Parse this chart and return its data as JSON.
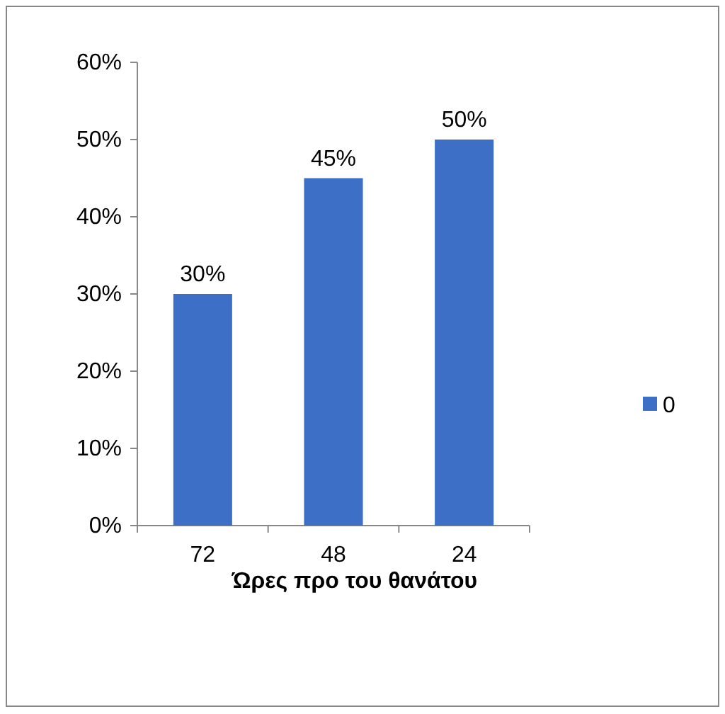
{
  "chart_data": {
    "type": "bar",
    "xlabel": "Ώρες προ του θανάτου",
    "categories": [
      "72",
      "48",
      "24"
    ],
    "series": [
      {
        "name": "0",
        "color": "#3d6fc6",
        "values": [
          30,
          45,
          50
        ],
        "value_labels": [
          "30%",
          "45%",
          "50%"
        ]
      }
    ],
    "ylim": [
      0,
      60
    ],
    "yticks": [
      {
        "value": 0,
        "label": "0%"
      },
      {
        "value": 10,
        "label": "10%"
      },
      {
        "value": 20,
        "label": "20%"
      },
      {
        "value": 30,
        "label": "30%"
      },
      {
        "value": 40,
        "label": "40%"
      },
      {
        "value": 50,
        "label": "50%"
      },
      {
        "value": 60,
        "label": "60%"
      }
    ],
    "grid": false,
    "legend": "right"
  }
}
